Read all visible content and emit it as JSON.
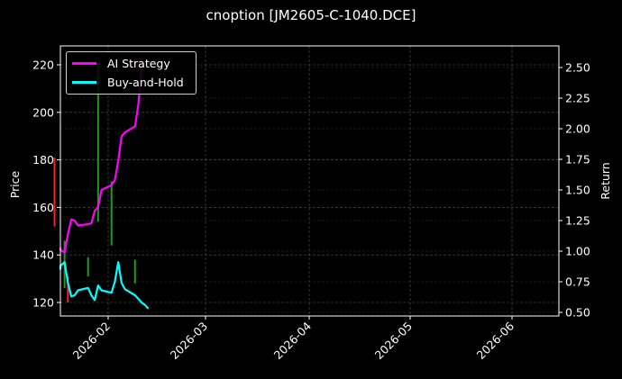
{
  "title": "cnoption [JM2605-C-1040.DCE]",
  "legend": [
    {
      "label": "AI Strategy",
      "color": "#ff00ff"
    },
    {
      "label": "Buy-and-Hold",
      "color": "#00ffff"
    }
  ],
  "axes": {
    "left_label": "Price",
    "right_label": "Return",
    "left_ticks": [
      "120",
      "140",
      "160",
      "180",
      "200",
      "220"
    ],
    "right_ticks": [
      "0.50",
      "0.75",
      "1.00",
      "1.25",
      "1.50",
      "1.75",
      "2.00",
      "2.25",
      "2.50"
    ],
    "x_ticks": [
      "2026-02",
      "2026-03",
      "2026-04",
      "2026-05",
      "2026-06"
    ]
  },
  "chart_data": {
    "type": "line",
    "title": "cnoption [JM2605-C-1040.DCE]",
    "xlabel": "",
    "ylabel": "Price",
    "ylabel_right": "Return",
    "ylim": [
      114,
      227
    ],
    "ylim_right": [
      0.47,
      2.67
    ],
    "x_ticks": [
      "2026-02",
      "2026-03",
      "2026-04",
      "2026-05",
      "2026-06"
    ],
    "grid": true,
    "legend_position": "upper left",
    "series": [
      {
        "name": "AI Strategy",
        "axis": "right",
        "color": "#ff00ff",
        "x": [
          "2026-01-15",
          "2026-01-16",
          "2026-01-19",
          "2026-01-20",
          "2026-01-21",
          "2026-01-22",
          "2026-01-23",
          "2026-01-26",
          "2026-01-27",
          "2026-01-28",
          "2026-01-29",
          "2026-01-30",
          "2026-02-02",
          "2026-02-03",
          "2026-02-04",
          "2026-02-05",
          "2026-02-06",
          "2026-02-09",
          "2026-02-10",
          "2026-02-11"
        ],
        "values": [
          1.03,
          1.01,
          0.99,
          1.14,
          1.26,
          1.25,
          1.21,
          1.22,
          1.23,
          1.33,
          1.36,
          1.5,
          1.54,
          1.58,
          1.74,
          1.94,
          1.97,
          2.02,
          2.2,
          2.5
        ]
      },
      {
        "name": "Buy-and-Hold",
        "axis": "right",
        "color": "#00ffff",
        "x": [
          "2026-01-15",
          "2026-01-16",
          "2026-01-19",
          "2026-01-20",
          "2026-01-21",
          "2026-01-22",
          "2026-01-23",
          "2026-01-26",
          "2026-01-27",
          "2026-01-28",
          "2026-01-29",
          "2026-01-30",
          "2026-02-02",
          "2026-02-03",
          "2026-02-04",
          "2026-02-05",
          "2026-02-06",
          "2026-02-09",
          "2026-02-10",
          "2026-02-11",
          "2026-02-12",
          "2026-02-13"
        ],
        "values": [
          0.85,
          0.88,
          0.91,
          0.74,
          0.63,
          0.64,
          0.68,
          0.7,
          0.64,
          0.6,
          0.72,
          0.68,
          0.66,
          0.75,
          0.91,
          0.74,
          0.69,
          0.64,
          0.61,
          0.58,
          0.56,
          0.53
        ]
      }
    ],
    "candles": {
      "axis": "left",
      "description": "thin OHLC bars (green up, red down)",
      "items": [
        {
          "date": "2026-01-16",
          "color": "red",
          "high": 181,
          "low": 152
        },
        {
          "date": "2026-01-19",
          "color": "green",
          "high": 146,
          "low": 126
        },
        {
          "date": "2026-01-20",
          "color": "red",
          "high": 131,
          "low": 120
        },
        {
          "date": "2026-01-26",
          "color": "green",
          "high": 139,
          "low": 131
        },
        {
          "date": "2026-01-29",
          "color": "green",
          "high": 220,
          "low": 154
        },
        {
          "date": "2026-02-02",
          "color": "green",
          "high": 171,
          "low": 144
        },
        {
          "date": "2026-02-09",
          "color": "green",
          "high": 138,
          "low": 128
        }
      ]
    }
  }
}
